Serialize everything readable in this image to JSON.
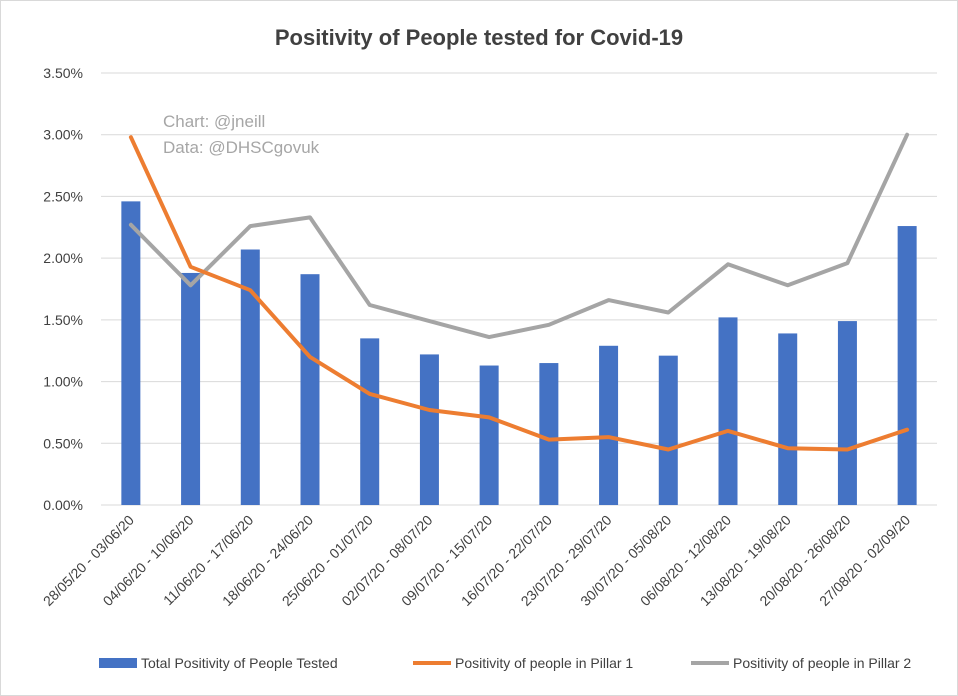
{
  "chart_data": {
    "type": "bar",
    "title": "Positivity of People tested for Covid-19",
    "annotations": [
      "Chart: @jneill",
      "Data: @DHSCgovuk"
    ],
    "categories": [
      "28/05/20 - 03/06/20",
      "04/06/20 - 10/06/20",
      "11/06/20 - 17/06/20",
      "18/06/20 - 24/06/20",
      "25/06/20 - 01/07/20",
      "02/07/20 - 08/07/20",
      "09/07/20 - 15/07/20",
      "16/07/20 - 22/07/20",
      "23/07/20 - 29/07/20",
      "30/07/20 - 05/08/20",
      "06/08/20 - 12/08/20",
      "13/08/20 - 19/08/20",
      "20/08/20 - 26/08/20",
      "27/08/20 - 02/09/20"
    ],
    "y_ticks": [
      "0.00%",
      "0.50%",
      "1.00%",
      "1.50%",
      "2.00%",
      "2.50%",
      "3.00%",
      "3.50%"
    ],
    "ylim": [
      0,
      0.035
    ],
    "grid": true,
    "legend_position": "bottom",
    "series": [
      {
        "name": "Total Positivity of People Tested",
        "type": "bar",
        "color": "#4472c4",
        "values": [
          0.0246,
          0.0188,
          0.0207,
          0.0187,
          0.0135,
          0.0122,
          0.0113,
          0.0115,
          0.0129,
          0.0121,
          0.0152,
          0.0139,
          0.0149,
          0.0226
        ]
      },
      {
        "name": "Positivity of people in Pillar 1",
        "type": "line",
        "color": "#ed7d31",
        "values": [
          0.0298,
          0.0193,
          0.0174,
          0.012,
          0.009,
          0.0077,
          0.0071,
          0.0053,
          0.0055,
          0.0045,
          0.006,
          0.0046,
          0.0045,
          0.0061
        ]
      },
      {
        "name": "Positivity of people in Pillar 2",
        "type": "line",
        "color": "#a5a5a5",
        "values": [
          0.0227,
          0.0178,
          0.0226,
          0.0233,
          0.0162,
          0.0149,
          0.0136,
          0.0146,
          0.0166,
          0.0156,
          0.0195,
          0.0178,
          0.0196,
          0.03
        ]
      }
    ]
  }
}
